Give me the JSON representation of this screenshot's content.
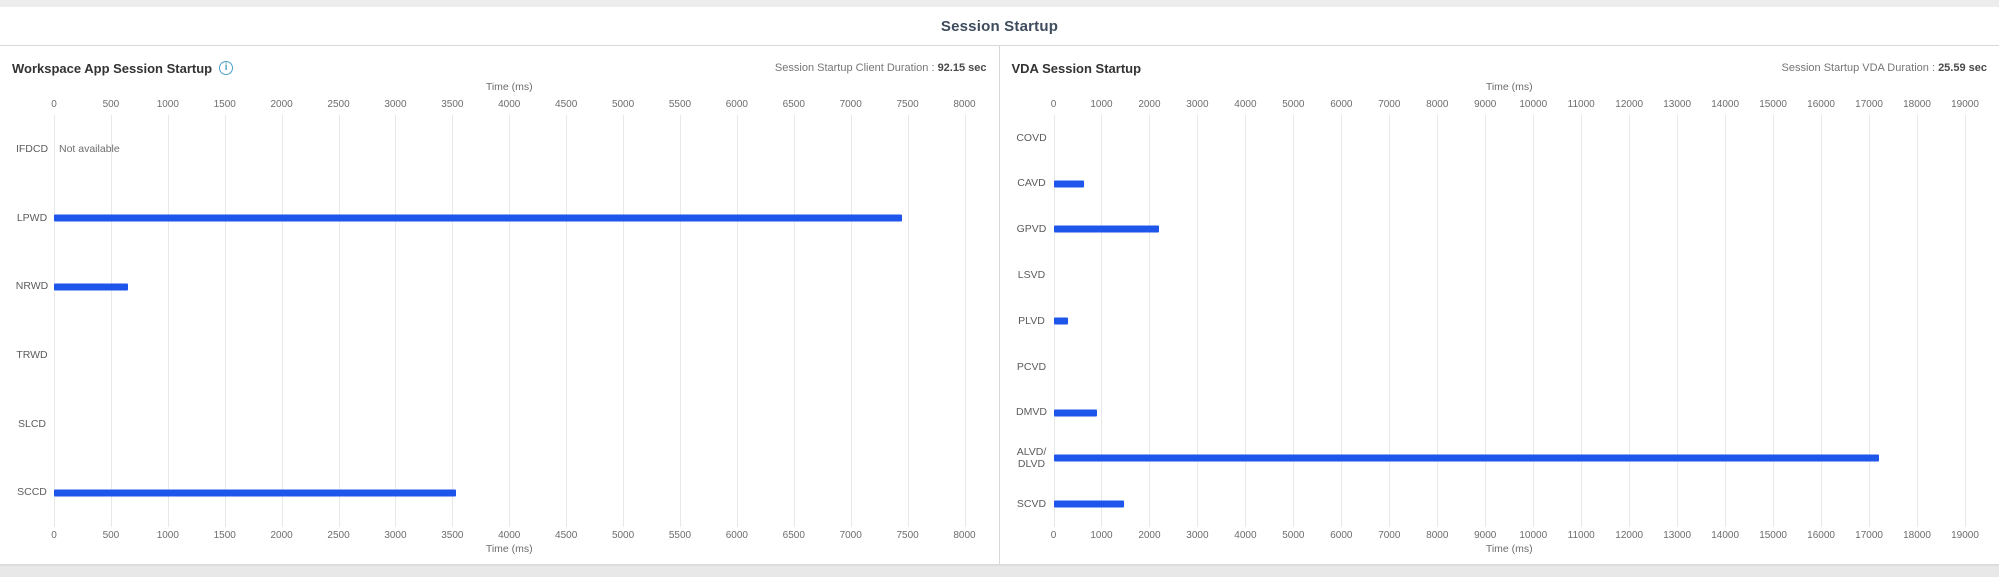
{
  "page": {
    "title": "Session Startup"
  },
  "colors": {
    "bar": "#1e56ec",
    "info_icon": "#4ba0c9",
    "gridline": "#e8e8e8",
    "panel_border": "#d8d8d8"
  },
  "panels": [
    {
      "title": "Workspace App Session Startup",
      "info_icon_glyph": "i",
      "duration_label": "Session Startup Client Duration : ",
      "duration_value": "92.15 sec"
    },
    {
      "title": "VDA Session Startup",
      "duration_label": "Session Startup VDA Duration : ",
      "duration_value": "25.59 sec"
    }
  ],
  "chart_data": [
    {
      "type": "bar",
      "orientation": "horizontal",
      "title": "Workspace App Session Startup",
      "xlabel": "Time (ms)",
      "axis": {
        "min": 0,
        "max": 8000,
        "step": 500
      },
      "grid": true,
      "categories": [
        "IFDCD",
        "LPWD",
        "NRWD",
        "TRWD",
        "SLCD",
        "SCCD"
      ],
      "values": [
        null,
        7450,
        650,
        null,
        null,
        3530
      ],
      "annotations": [
        {
          "category": "IFDCD",
          "text": "Not available"
        }
      ],
      "bar_color": "#1e56ec"
    },
    {
      "type": "bar",
      "orientation": "horizontal",
      "title": "VDA Session Startup",
      "xlabel": "Time (ms)",
      "axis": {
        "min": 0,
        "max": 19000,
        "step": 1000
      },
      "grid": true,
      "categories": [
        "COVD",
        "CAVD",
        "GPVD",
        "LSVD",
        "PLVD",
        "PCVD",
        "DMVD",
        "ALVD/ DLVD",
        "SCVD"
      ],
      "values": [
        null,
        630,
        2200,
        null,
        300,
        null,
        900,
        17200,
        1470
      ],
      "annotations": [],
      "bar_color": "#1e56ec"
    }
  ]
}
